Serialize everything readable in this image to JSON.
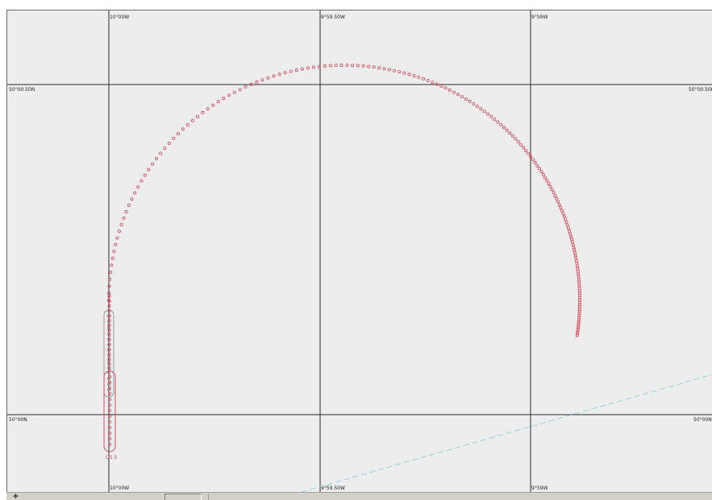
{
  "chart": {
    "lon_labels": [
      "10°00W",
      "9°59.50W",
      "9°59W"
    ],
    "lat_labels": [
      "50°00.50N",
      "50°00N"
    ],
    "ship_label": "OS 5"
  },
  "colors": {
    "background": "#ededed",
    "grid": "#2b2b2b",
    "track": "#d84a5a",
    "ghost_track": "#9a9a9a",
    "route": "#8fd3e0"
  },
  "status_bar": {
    "icon": "pointer-icon"
  }
}
